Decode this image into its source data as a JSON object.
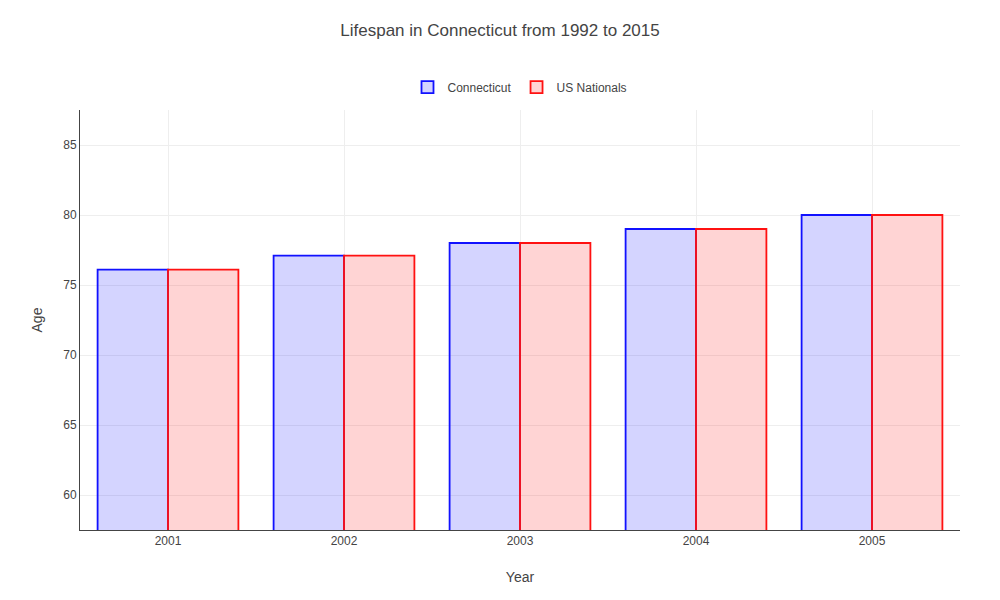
{
  "chart_data": {
    "type": "bar",
    "title": "Lifespan in Connecticut from 1992 to 2015",
    "xlabel": "Year",
    "ylabel": "Age",
    "categories": [
      "2001",
      "2002",
      "2003",
      "2004",
      "2005"
    ],
    "series": [
      {
        "name": "Connecticut",
        "color": "#1111ff",
        "values": [
          76.1,
          77.1,
          78.0,
          79.0,
          80.0
        ]
      },
      {
        "name": "US Nationals",
        "color": "#ff1111",
        "values": [
          76.1,
          77.1,
          78.0,
          79.0,
          80.0
        ]
      }
    ],
    "ylim": [
      57.5,
      87.5
    ],
    "yticks": [
      60,
      65,
      70,
      75,
      80,
      85
    ],
    "grid": true,
    "legend": "top"
  }
}
